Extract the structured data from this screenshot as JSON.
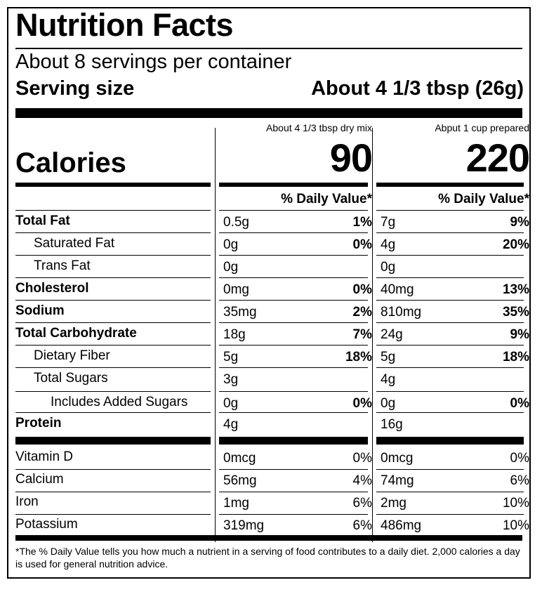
{
  "title": "Nutrition Facts",
  "servings_per_container": "About 8 servings per container",
  "serving_size_label": "Serving size",
  "serving_size_value": "About 4 1/3 tbsp (26g)",
  "calories_label": "Calories",
  "columns": [
    {
      "header": "About 4 1/3 tbsp dry mix",
      "calories": "90",
      "dv_header": "% Daily Value*"
    },
    {
      "header": "Abput 1 cup prepared",
      "calories": "220",
      "dv_header": "% Daily Value*"
    }
  ],
  "nutrients": [
    {
      "name": "Total Fat",
      "c1_amount": "0.5g",
      "c1_dv": "1%",
      "c2_amount": "7g",
      "c2_dv": "9%"
    },
    {
      "name": "Saturated Fat",
      "c1_amount": "0g",
      "c1_dv": "0%",
      "c2_amount": "4g",
      "c2_dv": "20%"
    },
    {
      "name": "Trans Fat",
      "c1_amount": "0g",
      "c1_dv": "",
      "c2_amount": "0g",
      "c2_dv": ""
    },
    {
      "name": "Cholesterol",
      "c1_amount": "0mg",
      "c1_dv": "0%",
      "c2_amount": "40mg",
      "c2_dv": "13%"
    },
    {
      "name": "Sodium",
      "c1_amount": "35mg",
      "c1_dv": "2%",
      "c2_amount": "810mg",
      "c2_dv": "35%"
    },
    {
      "name": "Total Carbohydrate",
      "c1_amount": "18g",
      "c1_dv": "7%",
      "c2_amount": "24g",
      "c2_dv": "9%"
    },
    {
      "name": "Dietary Fiber",
      "c1_amount": "5g",
      "c1_dv": "18%",
      "c2_amount": "5g",
      "c2_dv": "18%"
    },
    {
      "name": "Total Sugars",
      "c1_amount": "3g",
      "c1_dv": "",
      "c2_amount": "4g",
      "c2_dv": ""
    },
    {
      "name": "Includes Added Sugars",
      "c1_amount": "0g",
      "c1_dv": "0%",
      "c2_amount": "0g",
      "c2_dv": "0%"
    },
    {
      "name": "Protein",
      "c1_amount": "4g",
      "c1_dv": "",
      "c2_amount": "16g",
      "c2_dv": ""
    }
  ],
  "vitamins": [
    {
      "name": "Vitamin D",
      "c1_amount": "0mcg",
      "c1_dv": "0%",
      "c2_amount": "0mcg",
      "c2_dv": "0%"
    },
    {
      "name": "Calcium",
      "c1_amount": "56mg",
      "c1_dv": "4%",
      "c2_amount": "74mg",
      "c2_dv": "6%"
    },
    {
      "name": "Iron",
      "c1_amount": "1mg",
      "c1_dv": "6%",
      "c2_amount": "2mg",
      "c2_dv": "10%"
    },
    {
      "name": "Potassium",
      "c1_amount": "319mg",
      "c1_dv": "6%",
      "c2_amount": "486mg",
      "c2_dv": "10%"
    }
  ],
  "footnote": "*The % Daily Value tells you how much a nutrient in a serving of food contributes to a daily diet. 2,000 calories a day is used for general nutrition advice."
}
